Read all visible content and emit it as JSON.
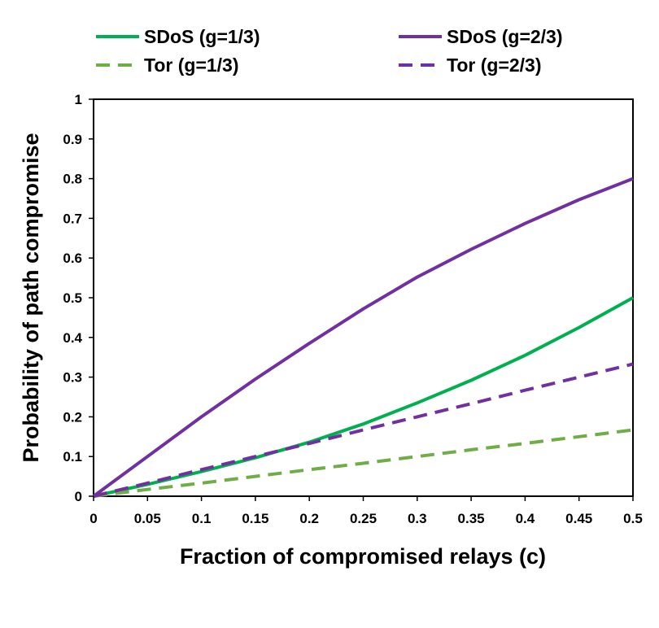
{
  "chart_data": {
    "type": "line",
    "xlabel": "Fraction of compromised relays (c)",
    "ylabel": "Probability of path compromise",
    "xlim": [
      0,
      0.5
    ],
    "ylim": [
      0,
      1
    ],
    "x_ticks": [
      "0",
      "0.05",
      "0.1",
      "0.15",
      "0.2",
      "0.25",
      "0.3",
      "0.35",
      "0.4",
      "0.45",
      "0.5"
    ],
    "y_ticks": [
      "0",
      "0.1",
      "0.2",
      "0.3",
      "0.4",
      "0.5",
      "0.6",
      "0.7",
      "0.8",
      "0.9",
      "1"
    ],
    "grid": false,
    "legend_position": "top",
    "series": [
      {
        "name": "SDoS (g=1/3)",
        "color": "#00b050",
        "dash": "solid",
        "x": [
          0,
          0.05,
          0.1,
          0.15,
          0.2,
          0.25,
          0.3,
          0.35,
          0.4,
          0.45,
          0.5
        ],
        "y": [
          0,
          0.03,
          0.062,
          0.097,
          0.136,
          0.182,
          0.235,
          0.292,
          0.355,
          0.425,
          0.5
        ]
      },
      {
        "name": "SDoS (g=2/3)",
        "color": "#7030a0",
        "dash": "solid",
        "x": [
          0,
          0.05,
          0.1,
          0.15,
          0.2,
          0.25,
          0.3,
          0.35,
          0.4,
          0.45,
          0.5
        ],
        "y": [
          0,
          0.1,
          0.2,
          0.295,
          0.385,
          0.472,
          0.552,
          0.622,
          0.687,
          0.747,
          0.8
        ]
      },
      {
        "name": "Tor (g=1/3)",
        "color": "#70ad47",
        "dash": "dashed",
        "x": [
          0,
          0.05,
          0.1,
          0.15,
          0.2,
          0.25,
          0.3,
          0.35,
          0.4,
          0.45,
          0.5
        ],
        "y": [
          0,
          0.017,
          0.033,
          0.05,
          0.067,
          0.083,
          0.1,
          0.117,
          0.133,
          0.15,
          0.167
        ]
      },
      {
        "name": "Tor (g=2/3)",
        "color": "#7030a0",
        "dash": "dashed",
        "x": [
          0,
          0.05,
          0.1,
          0.15,
          0.2,
          0.25,
          0.3,
          0.35,
          0.4,
          0.45,
          0.5
        ],
        "y": [
          0,
          0.033,
          0.067,
          0.1,
          0.133,
          0.167,
          0.2,
          0.233,
          0.267,
          0.3,
          0.333
        ]
      }
    ]
  }
}
